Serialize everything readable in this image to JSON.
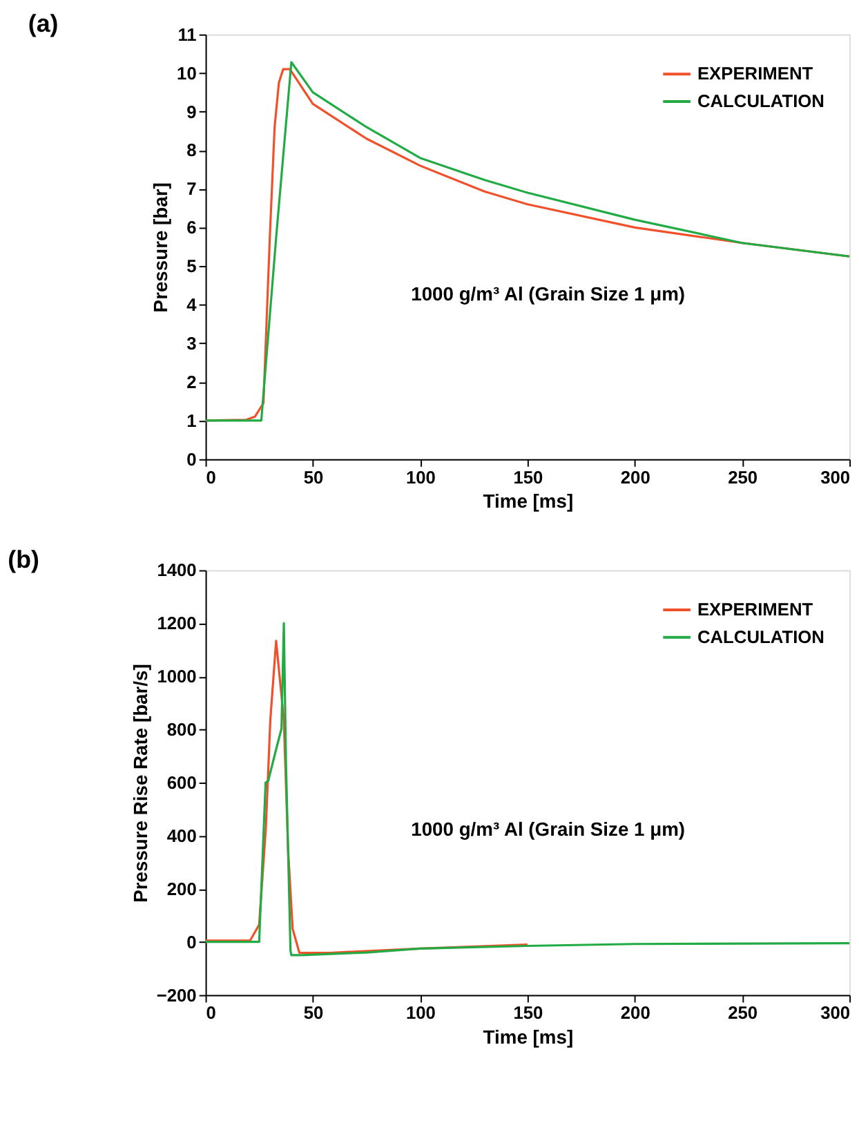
{
  "chart_data": [
    {
      "type": "line",
      "title": "(a)",
      "xlabel": "Time [ms]",
      "ylabel": "Pressure [bar]",
      "annotations": [
        "1000 g/m³ Al (Grain Size 1 μm)"
      ],
      "xlim": [
        0,
        300
      ],
      "ylim": [
        0,
        11
      ],
      "xticks": [
        0,
        50,
        100,
        150,
        200,
        250,
        300
      ],
      "yticks": [
        0,
        1,
        2,
        3,
        4,
        5,
        6,
        7,
        8,
        9,
        10,
        11
      ],
      "grid": false,
      "legend": "top right",
      "marker": "none",
      "line_style": "solid",
      "series": [
        {
          "name": "EXPERIMENT",
          "color": "#f0502a",
          "x": [
            0,
            19,
            23,
            27,
            30,
            32.2,
            34.2,
            36.2,
            39.3,
            50,
            75,
            100,
            130,
            150,
            200,
            250,
            300
          ],
          "values": [
            1.0,
            1.02,
            1.1,
            1.45,
            5.8,
            8.6,
            9.75,
            10.1,
            10.1,
            9.2,
            8.3,
            7.6,
            6.93,
            6.6,
            6.0,
            5.6,
            5.25
          ]
        },
        {
          "name": "CALCULATION",
          "color": "#22aa44",
          "x": [
            0,
            26,
            33,
            40,
            50,
            75,
            100,
            130,
            150,
            200,
            250,
            300
          ],
          "values": [
            1.0,
            1.0,
            5.8,
            10.28,
            9.5,
            8.6,
            7.8,
            7.23,
            6.9,
            6.2,
            5.6,
            5.25
          ]
        }
      ]
    },
    {
      "type": "line",
      "title": "(b)",
      "xlabel": "Time [ms]",
      "ylabel": "Pressure Rise Rate [bar/s]",
      "annotations": [
        "1000 g/m³ Al (Grain Size 1 μm)"
      ],
      "xlim": [
        0,
        300
      ],
      "ylim": [
        -200,
        1400
      ],
      "xticks": [
        0,
        50,
        100,
        150,
        200,
        250,
        300
      ],
      "yticks": [
        -200,
        0,
        200,
        400,
        600,
        800,
        1000,
        1200,
        1400
      ],
      "grid": false,
      "legend": "top right",
      "marker": "none",
      "line_style": "solid",
      "series": [
        {
          "name": "EXPERIMENT",
          "color": "#f0502a",
          "x": [
            0,
            20.8,
            25,
            28.1,
            30.2,
            32.9,
            36.5,
            38.5,
            40.6,
            43.75,
            58,
            100,
            150
          ],
          "values": [
            5,
            5,
            65,
            426,
            836,
            1134,
            836,
            344,
            49,
            -41,
            -41,
            -25,
            -10
          ]
        },
        {
          "name": "CALCULATION",
          "color": "#22aa44",
          "x": [
            0,
            25,
            28,
            29.2,
            33.3,
            35.4,
            36.5,
            37.5,
            39.6,
            40,
            45,
            75,
            100,
            150,
            200,
            300
          ],
          "values": [
            0,
            0,
            600,
            606,
            738,
            803,
            1200,
            672,
            -33,
            -50,
            -50,
            -40,
            -25,
            -15,
            -8,
            -5
          ]
        }
      ]
    }
  ]
}
